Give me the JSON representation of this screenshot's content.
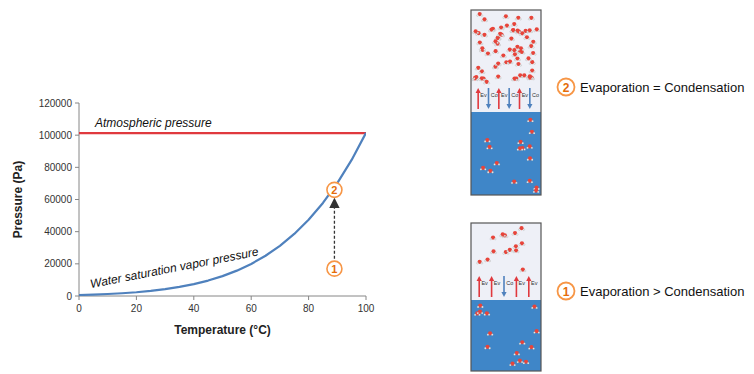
{
  "chart_data": {
    "type": "line",
    "x_label": "Temperature (°C)",
    "y_label": "Pressure (Pa)",
    "x": [
      0,
      5,
      10,
      15,
      20,
      25,
      30,
      35,
      40,
      45,
      50,
      55,
      60,
      65,
      70,
      75,
      80,
      85,
      90,
      95,
      100
    ],
    "series": [
      {
        "name": "Atmospheric pressure",
        "color": "#e0393e",
        "values": [
          101325,
          101325,
          101325,
          101325,
          101325,
          101325,
          101325,
          101325,
          101325,
          101325,
          101325,
          101325,
          101325,
          101325,
          101325,
          101325,
          101325,
          101325,
          101325,
          101325,
          101325
        ]
      },
      {
        "name": "Water saturation vapor pressure",
        "color": "#4f81bd",
        "values": [
          611,
          872,
          1228,
          1705,
          2339,
          3169,
          4246,
          5627,
          7384,
          9593,
          12352,
          15763,
          19946,
          25022,
          31201,
          38595,
          47414,
          57867,
          70182,
          84609,
          101418
        ]
      }
    ],
    "xlim": [
      0,
      100
    ],
    "xticks": [
      0,
      20,
      40,
      60,
      80,
      100
    ],
    "ylim": [
      0,
      120000
    ],
    "yticks": [
      0,
      20000,
      40000,
      60000,
      80000,
      100000,
      120000
    ],
    "grid": false,
    "annotations": [
      {
        "text": "1",
        "x": 89,
        "y": 17000
      },
      {
        "text": "2",
        "x": 89,
        "y": 66000
      }
    ]
  },
  "diagrams": [
    {
      "label": "2",
      "text": "Evaporation = Condensation",
      "arrows": [
        {
          "label": "Ev",
          "direction": "up"
        },
        {
          "label": "Co",
          "direction": "down"
        },
        {
          "label": "Ev",
          "direction": "up"
        },
        {
          "label": "Co",
          "direction": "down"
        },
        {
          "label": "Ev",
          "direction": "up"
        },
        {
          "label": "Co",
          "direction": "down"
        }
      ]
    },
    {
      "label": "1",
      "text": "Evaporation > Condensation",
      "arrows": [
        {
          "label": "Ev",
          "direction": "up"
        },
        {
          "label": "Ev",
          "direction": "up"
        },
        {
          "label": "Co",
          "direction": "down"
        },
        {
          "label": "Ev",
          "direction": "up"
        },
        {
          "label": "Ev",
          "direction": "up"
        }
      ]
    }
  ]
}
